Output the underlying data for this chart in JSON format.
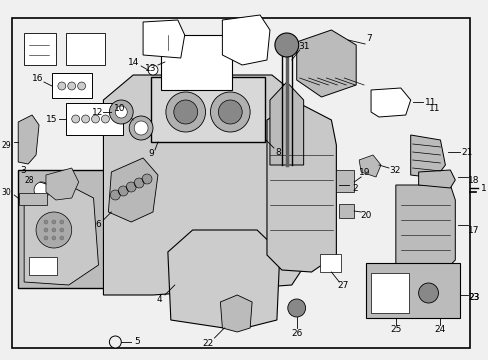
{
  "bg_color": "#f0f0f0",
  "border_color": "#000000",
  "fig_width": 4.89,
  "fig_height": 3.6,
  "dpi": 100,
  "part_fill": "#d4d4d4",
  "part_edge": "#000000",
  "white_fill": "#ffffff",
  "dark_fill": "#888888",
  "mid_fill": "#bbbbbb"
}
